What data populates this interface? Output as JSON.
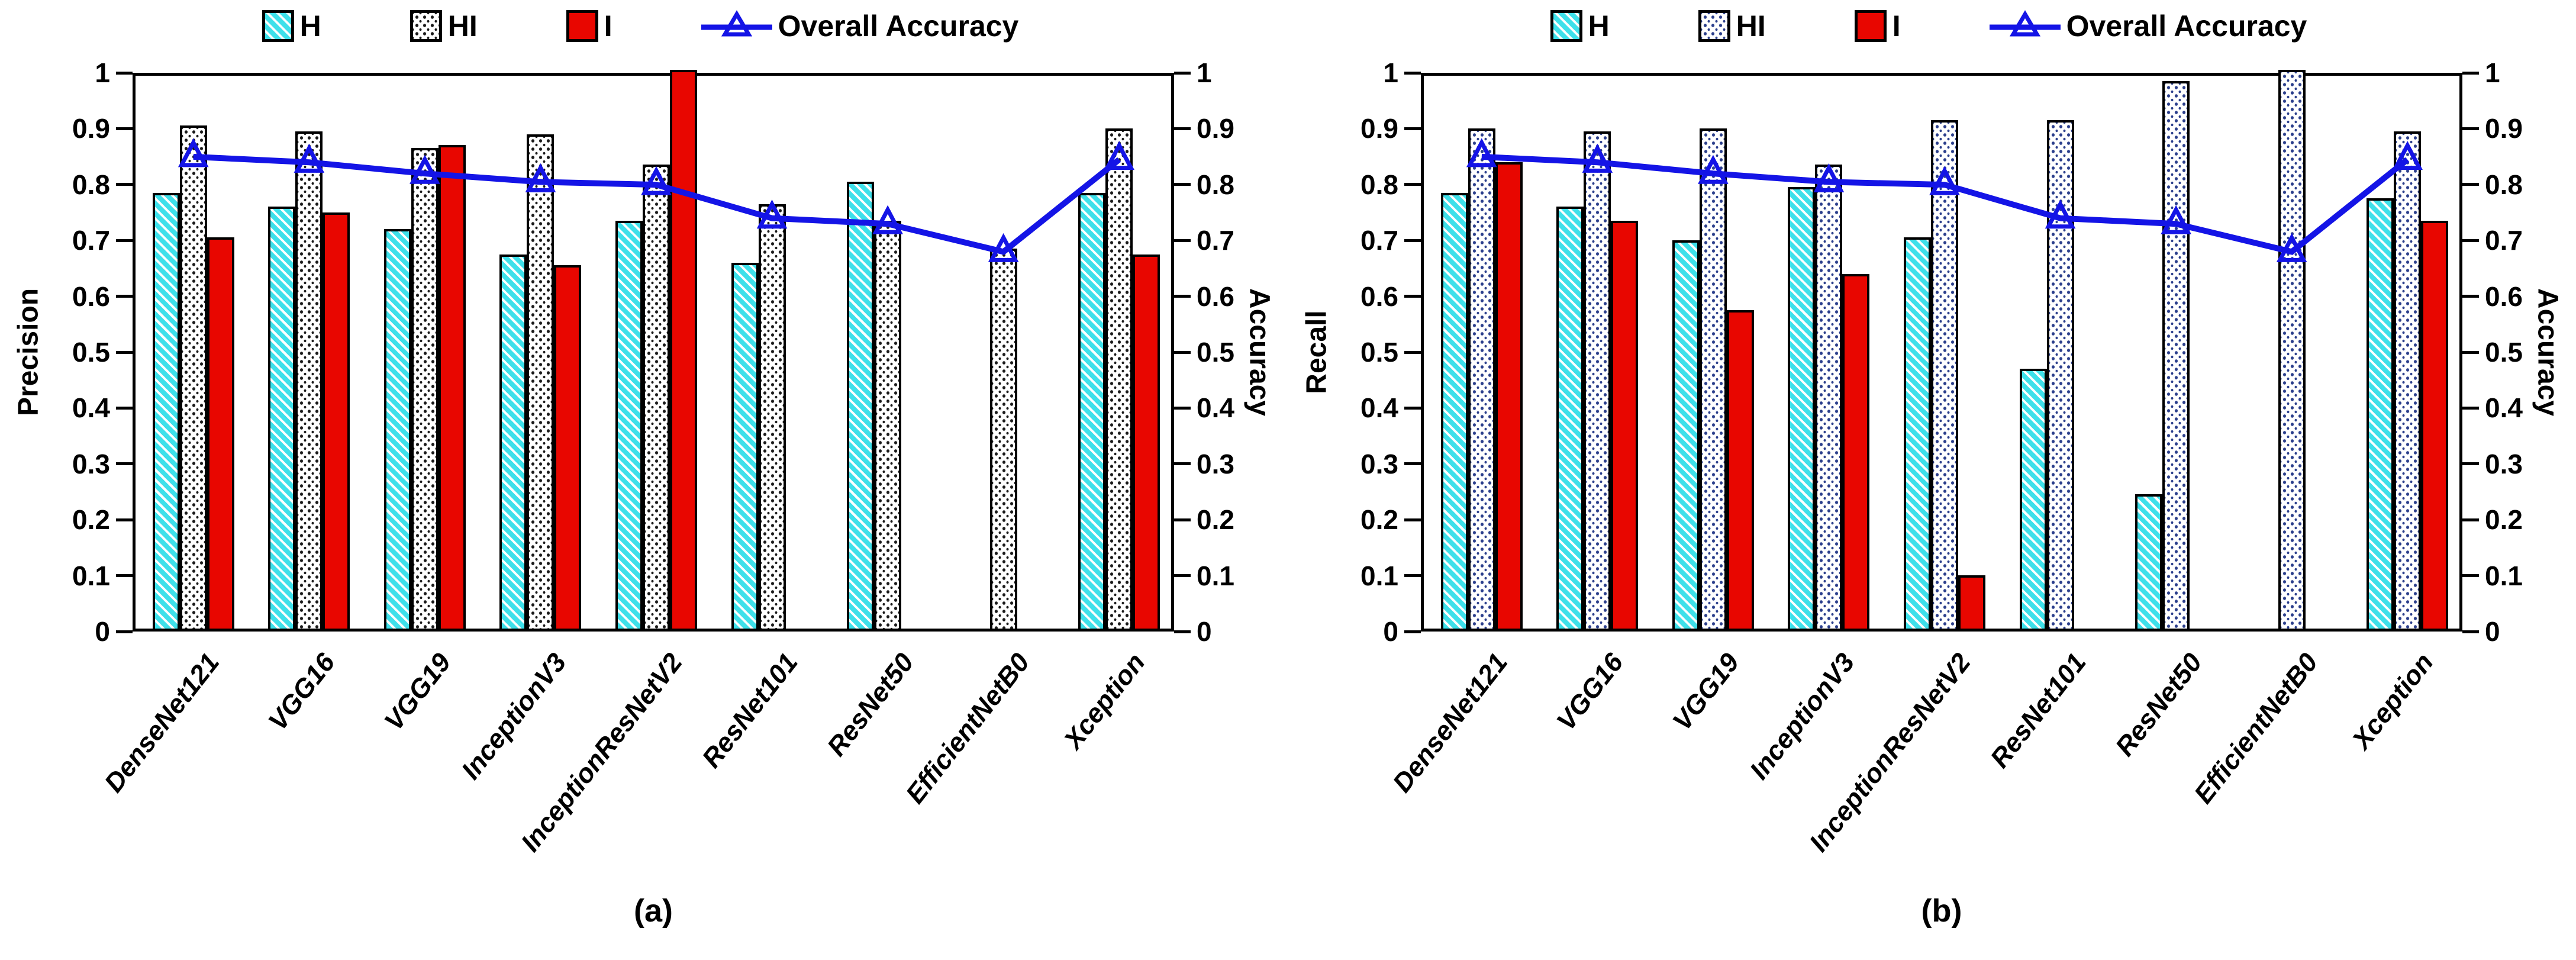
{
  "colors": {
    "h_stripe_cyan": "#3EE0EA",
    "i_red": "#E80600",
    "accuracy_line_blue": "#1414E6",
    "hi_dot_chart_a": "#1A1A1A",
    "hi_dot_chart_b": "#2B3F8C",
    "axis": "#000000",
    "background": "#FFFFFF"
  },
  "legend_labels": [
    "H",
    "HI",
    "I",
    "Overall Accuracy"
  ],
  "chart_data": [
    {
      "type": "bar+line",
      "panel": "(a)",
      "ylabel": "Precision",
      "ylabel_right": "Accuracy",
      "ylim": [
        0,
        1
      ],
      "ytick_step": 0.1,
      "grid": false,
      "legend_position": "top",
      "categories": [
        "DenseNet121",
        "VGG16",
        "VGG19",
        "InceptionV3",
        "InceptionResNetV2",
        "ResNet101",
        "ResNet50",
        "EfficientNetB0",
        "Xception"
      ],
      "series": [
        {
          "name": "H",
          "values": [
            0.78,
            0.755,
            0.715,
            0.67,
            0.73,
            0.655,
            0.8,
            null,
            0.78
          ]
        },
        {
          "name": "HI",
          "values": [
            0.9,
            0.89,
            0.86,
            0.885,
            0.83,
            0.76,
            0.73,
            0.68,
            0.895
          ]
        },
        {
          "name": "I",
          "values": [
            0.7,
            0.745,
            0.865,
            0.65,
            1.0,
            null,
            null,
            null,
            0.67
          ]
        }
      ],
      "line_series": {
        "name": "Overall Accuracy",
        "values": [
          0.855,
          0.845,
          0.825,
          0.81,
          0.805,
          0.745,
          0.735,
          0.685,
          0.85
        ]
      }
    },
    {
      "type": "bar+line",
      "panel": "(b)",
      "ylabel": "Recall",
      "ylabel_right": "Accuracy",
      "ylim": [
        0,
        1
      ],
      "ytick_step": 0.1,
      "grid": false,
      "legend_position": "top",
      "categories": [
        "DenseNet121",
        "VGG16",
        "VGG19",
        "InceptionV3",
        "InceptionResNetV2",
        "ResNet101",
        "ResNet50",
        "EfficientNetB0",
        "Xception"
      ],
      "series": [
        {
          "name": "H",
          "values": [
            0.78,
            0.755,
            0.695,
            0.79,
            0.7,
            0.465,
            0.24,
            null,
            0.77
          ]
        },
        {
          "name": "HI",
          "values": [
            0.895,
            0.89,
            0.895,
            0.83,
            0.91,
            0.91,
            0.98,
            1.0,
            0.89
          ]
        },
        {
          "name": "I",
          "values": [
            0.835,
            0.73,
            0.57,
            0.635,
            0.095,
            null,
            null,
            null,
            0.73
          ]
        }
      ],
      "line_series": {
        "name": "Overall Accuracy",
        "values": [
          0.855,
          0.845,
          0.825,
          0.81,
          0.805,
          0.745,
          0.735,
          0.685,
          0.85
        ]
      }
    }
  ]
}
